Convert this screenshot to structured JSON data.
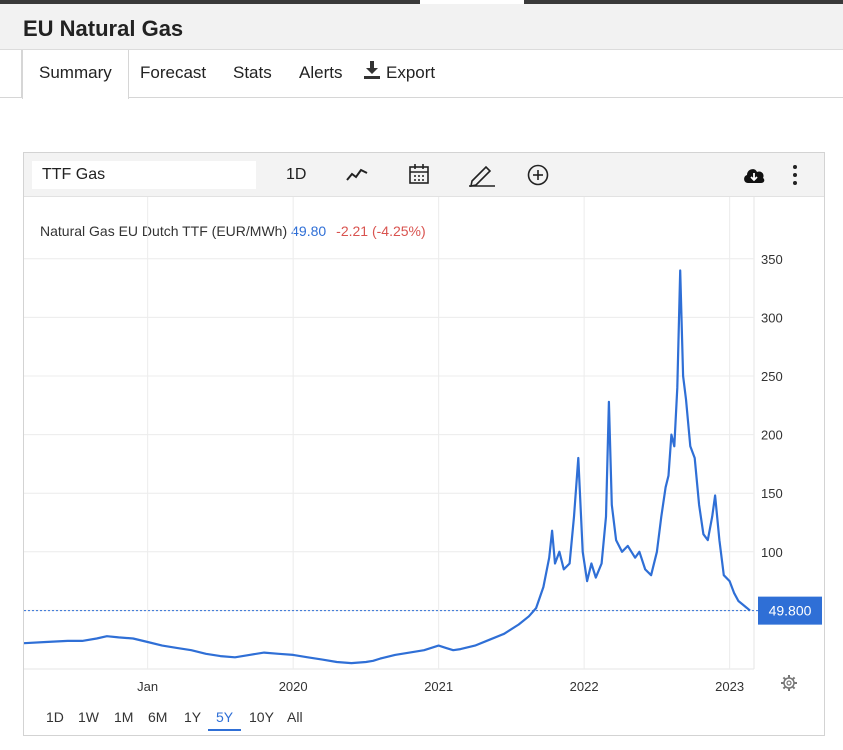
{
  "page_title": "EU Natural Gas",
  "tabs": [
    {
      "label": "Summary",
      "active": true
    },
    {
      "label": "Forecast",
      "active": false
    },
    {
      "label": "Stats",
      "active": false
    },
    {
      "label": "Alerts",
      "active": false
    },
    {
      "label": "Export",
      "active": false,
      "icon": "download-icon"
    }
  ],
  "toolbar": {
    "symbol_value": "TTF Gas",
    "interval_label": "1D",
    "icons": [
      "line-chart-icon",
      "calendar-icon",
      "pencil-icon",
      "plus-circle-icon",
      "cloud-download-icon",
      "more-vertical-icon"
    ]
  },
  "legend": {
    "name": "Natural Gas EU Dutch TTF (EUR/MWh)",
    "last": "49.80",
    "change": "-2.21 (-4.25%)"
  },
  "price_label": "49.800",
  "ranges": [
    {
      "label": "1D",
      "active": false
    },
    {
      "label": "1W",
      "active": false
    },
    {
      "label": "1M",
      "active": false
    },
    {
      "label": "6M",
      "active": false
    },
    {
      "label": "1Y",
      "active": false
    },
    {
      "label": "5Y",
      "active": true
    },
    {
      "label": "10Y",
      "active": false
    },
    {
      "label": "All",
      "active": false
    }
  ],
  "colors": {
    "line": "#2f6fd6",
    "change_negative": "#d9534f",
    "price_badge": "#2f6fd6"
  },
  "chart_data": {
    "type": "line",
    "title": "",
    "series": [
      {
        "name": "Natural Gas EU Dutch TTF (EUR/MWh)"
      }
    ],
    "x_ticks": [
      "Jan",
      "2020",
      "2021",
      "2022",
      "2023"
    ],
    "y_ticks": [
      100,
      150,
      200,
      250,
      300,
      350
    ],
    "ylim": [
      0,
      370
    ],
    "grid": true,
    "current_value": 49.8,
    "x_unit": "year",
    "points": [
      [
        2018.15,
        22
      ],
      [
        2018.3,
        23
      ],
      [
        2018.45,
        24
      ],
      [
        2018.55,
        24
      ],
      [
        2018.65,
        26
      ],
      [
        2018.72,
        28
      ],
      [
        2018.8,
        27
      ],
      [
        2018.9,
        26
      ],
      [
        2019.0,
        23
      ],
      [
        2019.1,
        20
      ],
      [
        2019.2,
        18
      ],
      [
        2019.3,
        16
      ],
      [
        2019.4,
        13
      ],
      [
        2019.5,
        11
      ],
      [
        2019.6,
        10
      ],
      [
        2019.7,
        12
      ],
      [
        2019.8,
        14
      ],
      [
        2019.9,
        13
      ],
      [
        2020.0,
        12
      ],
      [
        2020.1,
        10
      ],
      [
        2020.2,
        8
      ],
      [
        2020.3,
        6
      ],
      [
        2020.4,
        5
      ],
      [
        2020.5,
        6
      ],
      [
        2020.55,
        7
      ],
      [
        2020.6,
        9
      ],
      [
        2020.7,
        12
      ],
      [
        2020.8,
        14
      ],
      [
        2020.9,
        16
      ],
      [
        2021.0,
        20
      ],
      [
        2021.05,
        18
      ],
      [
        2021.1,
        16
      ],
      [
        2021.15,
        17
      ],
      [
        2021.25,
        20
      ],
      [
        2021.35,
        25
      ],
      [
        2021.45,
        30
      ],
      [
        2021.55,
        38
      ],
      [
        2021.62,
        45
      ],
      [
        2021.67,
        52
      ],
      [
        2021.72,
        70
      ],
      [
        2021.76,
        95
      ],
      [
        2021.78,
        118
      ],
      [
        2021.8,
        90
      ],
      [
        2021.83,
        100
      ],
      [
        2021.86,
        85
      ],
      [
        2021.9,
        90
      ],
      [
        2021.93,
        130
      ],
      [
        2021.96,
        180
      ],
      [
        2021.99,
        100
      ],
      [
        2022.02,
        75
      ],
      [
        2022.05,
        90
      ],
      [
        2022.08,
        78
      ],
      [
        2022.12,
        90
      ],
      [
        2022.15,
        130
      ],
      [
        2022.17,
        228
      ],
      [
        2022.19,
        140
      ],
      [
        2022.22,
        110
      ],
      [
        2022.26,
        100
      ],
      [
        2022.3,
        105
      ],
      [
        2022.35,
        95
      ],
      [
        2022.38,
        100
      ],
      [
        2022.42,
        85
      ],
      [
        2022.46,
        80
      ],
      [
        2022.5,
        100
      ],
      [
        2022.53,
        130
      ],
      [
        2022.56,
        155
      ],
      [
        2022.58,
        165
      ],
      [
        2022.6,
        200
      ],
      [
        2022.62,
        190
      ],
      [
        2022.64,
        240
      ],
      [
        2022.66,
        340
      ],
      [
        2022.68,
        250
      ],
      [
        2022.7,
        230
      ],
      [
        2022.73,
        190
      ],
      [
        2022.76,
        180
      ],
      [
        2022.79,
        140
      ],
      [
        2022.82,
        115
      ],
      [
        2022.85,
        110
      ],
      [
        2022.88,
        130
      ],
      [
        2022.9,
        148
      ],
      [
        2022.93,
        110
      ],
      [
        2022.96,
        80
      ],
      [
        2023.0,
        75
      ],
      [
        2023.03,
        65
      ],
      [
        2023.06,
        58
      ],
      [
        2023.09,
        55
      ],
      [
        2023.12,
        52
      ],
      [
        2023.14,
        49.8
      ]
    ]
  }
}
